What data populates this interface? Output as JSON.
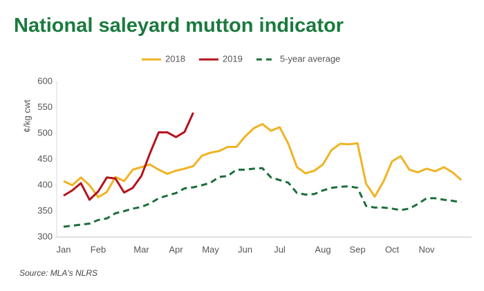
{
  "chart_data": {
    "type": "line",
    "title": "National saleyard mutton indicator",
    "y_label": "¢/kg cwt",
    "source": "Source: MLA's NLRS",
    "categories": [
      "Jan",
      null,
      null,
      null,
      "Feb",
      null,
      null,
      null,
      null,
      "Mar",
      null,
      null,
      null,
      "Apr",
      null,
      null,
      null,
      "May",
      null,
      null,
      null,
      "Jun",
      null,
      null,
      null,
      "Jul",
      null,
      null,
      null,
      null,
      "Aug",
      null,
      null,
      null,
      "Sep",
      null,
      null,
      null,
      "Oct",
      null,
      null,
      null,
      "Nov",
      null,
      null,
      null,
      null
    ],
    "series": [
      {
        "name": "2018",
        "color": "#f0b323",
        "dash": false,
        "values": [
          408,
          400,
          415,
          400,
          377,
          387,
          416,
          408,
          430,
          435,
          440,
          430,
          422,
          428,
          432,
          437,
          457,
          463,
          466,
          474,
          474,
          494,
          510,
          518,
          505,
          512,
          480,
          435,
          423,
          428,
          440,
          468,
          480,
          479,
          481,
          403,
          378,
          407,
          446,
          456,
          430,
          425,
          432,
          427,
          435,
          425,
          410
        ]
      },
      {
        "name": "2019",
        "color": "#b5121b",
        "dash": false,
        "values": [
          380,
          390,
          404,
          372,
          388,
          415,
          413,
          386,
          395,
          418,
          462,
          502,
          502,
          493,
          503,
          540,
          null,
          null,
          null,
          null,
          null,
          null,
          null,
          null,
          null,
          null,
          null,
          null,
          null,
          null,
          null,
          null,
          null,
          null,
          null,
          null,
          null,
          null,
          null,
          null,
          null,
          null,
          null,
          null,
          null,
          null,
          null
        ]
      },
      {
        "name": "5-year average",
        "color": "#1b6e3a",
        "dash": true,
        "values": [
          320,
          322,
          324,
          326,
          333,
          336,
          346,
          350,
          355,
          358,
          365,
          375,
          380,
          385,
          394,
          396,
          400,
          405,
          416,
          418,
          430,
          430,
          432,
          433,
          415,
          410,
          405,
          385,
          382,
          383,
          390,
          395,
          397,
          398,
          395,
          360,
          357,
          357,
          355,
          352,
          355,
          364,
          375,
          375,
          372,
          370,
          367
        ]
      }
    ],
    "ylim": [
      300,
      600
    ],
    "yticks": [
      300,
      350,
      400,
      450,
      500,
      550,
      600
    ],
    "grid": false,
    "legend": "top"
  }
}
